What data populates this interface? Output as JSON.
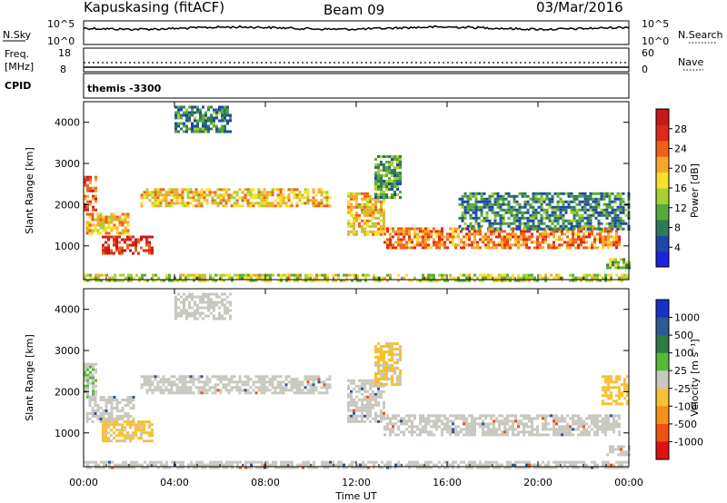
{
  "header": {
    "station": "Kapuskasing (fitACF)",
    "beam": "Beam 09",
    "date": "03/Mar/2016"
  },
  "top_panels": {
    "nsky_label": "N.Sky",
    "nsky_ticks": [
      "10^5",
      "10^0"
    ],
    "nsearch_label": "N.Search",
    "nsearch_ticks": [
      "10^5",
      "10^0"
    ],
    "freq_label": "Freq.",
    "freq_unit": "[MHz]",
    "freq_ticks": [
      "18",
      "8"
    ],
    "nave_label": "Nave",
    "nave_ticks": [
      "60",
      "0"
    ],
    "cpid_label": "CPID",
    "cpid_value": "themis -3300"
  },
  "axes": {
    "xlabel": "Time UT",
    "x_ticks": [
      "00:00",
      "04:00",
      "08:00",
      "12:00",
      "16:00",
      "20:00",
      "00:00"
    ],
    "ylabel": "Slant Range [km]",
    "y_ticks": [
      "1000",
      "2000",
      "3000",
      "4000"
    ]
  },
  "colorbars": {
    "power": {
      "label": "Power [dB]",
      "ticks": [
        "4",
        "8",
        "12",
        "16",
        "20",
        "24",
        "28"
      ],
      "colors": [
        "#1a24e0",
        "#1e48a8",
        "#2e7a5a",
        "#5aaa3a",
        "#a8d030",
        "#f8e028",
        "#f8a828",
        "#f06018",
        "#e02818",
        "#c81818"
      ]
    },
    "velocity": {
      "label": "Velocity [m s⁻¹]",
      "ticks": [
        "1000",
        "500",
        "100",
        "25",
        "-25",
        "-100",
        "-500",
        "-1000"
      ],
      "colors": [
        "#1830c8",
        "#2a5a98",
        "#2e7a40",
        "#58b838",
        "#c8c8c0",
        "#f8c030",
        "#f89018",
        "#f05010",
        "#e01010"
      ]
    }
  },
  "chart_data": [
    {
      "type": "heatmap",
      "name": "power",
      "x_range_hours": [
        0,
        24
      ],
      "y_range_km": [
        180,
        4500
      ],
      "ylabel": "Slant Range [km]",
      "colorbar_label": "Power [dB]",
      "colorbar_range": [
        0,
        30
      ],
      "regions": [
        {
          "t0": 0.0,
          "t1": 0.6,
          "r0": 1900,
          "r1": 2700,
          "value": 24
        },
        {
          "t0": 0.1,
          "t1": 2.0,
          "r0": 1300,
          "r1": 1800,
          "value": 18
        },
        {
          "t0": 0.8,
          "t1": 3.0,
          "r0": 800,
          "r1": 1250,
          "value": 26
        },
        {
          "t0": 2.5,
          "t1": 10.8,
          "r0": 2000,
          "r1": 2400,
          "value": 18
        },
        {
          "t0": 4.0,
          "t1": 6.5,
          "r0": 3800,
          "r1": 4400,
          "value": 8
        },
        {
          "t0": 11.6,
          "t1": 13.2,
          "r0": 1300,
          "r1": 2300,
          "value": 18
        },
        {
          "t0": 12.8,
          "t1": 14.0,
          "r0": 2200,
          "r1": 3200,
          "value": 10
        },
        {
          "t0": 13.2,
          "t1": 23.6,
          "r0": 950,
          "r1": 1450,
          "value": 22
        },
        {
          "t0": 16.5,
          "t1": 24.0,
          "r0": 1400,
          "r1": 2300,
          "value": 8
        },
        {
          "t0": 23.0,
          "t1": 24.0,
          "r0": 500,
          "r1": 700,
          "value": 12
        },
        {
          "t0": 0.0,
          "t1": 24.0,
          "r0": 180,
          "r1": 320,
          "value": 14
        }
      ]
    },
    {
      "type": "heatmap",
      "name": "velocity",
      "x_range_hours": [
        0,
        24
      ],
      "y_range_km": [
        180,
        4500
      ],
      "ylabel": "Slant Range [km]",
      "colorbar_label": "Velocity [m s⁻¹]",
      "colorbar_range": [
        -1000,
        1000
      ],
      "regions": [
        {
          "t0": 0.0,
          "t1": 0.6,
          "r0": 1900,
          "r1": 2700,
          "value": 100
        },
        {
          "t0": 0.1,
          "t1": 2.2,
          "r0": 1300,
          "r1": 1900,
          "value": 0
        },
        {
          "t0": 0.8,
          "t1": 3.0,
          "r0": 800,
          "r1": 1300,
          "value": -150
        },
        {
          "t0": 2.5,
          "t1": 10.8,
          "r0": 2000,
          "r1": 2400,
          "value": 0
        },
        {
          "t0": 4.0,
          "t1": 6.5,
          "r0": 3800,
          "r1": 4400,
          "value": 50
        },
        {
          "t0": 11.6,
          "t1": 13.2,
          "r0": 1300,
          "r1": 2300,
          "value": 0
        },
        {
          "t0": 12.8,
          "t1": 14.0,
          "r0": 2200,
          "r1": 3200,
          "value": -150
        },
        {
          "t0": 13.2,
          "t1": 23.6,
          "r0": 950,
          "r1": 1450,
          "value": 0
        },
        {
          "t0": 22.8,
          "t1": 24.0,
          "r0": 1700,
          "r1": 2400,
          "value": -200
        },
        {
          "t0": 23.0,
          "t1": 24.0,
          "r0": 500,
          "r1": 700,
          "value": 0
        },
        {
          "t0": 0.0,
          "t1": 24.0,
          "r0": 180,
          "r1": 320,
          "value": 0
        }
      ]
    }
  ]
}
